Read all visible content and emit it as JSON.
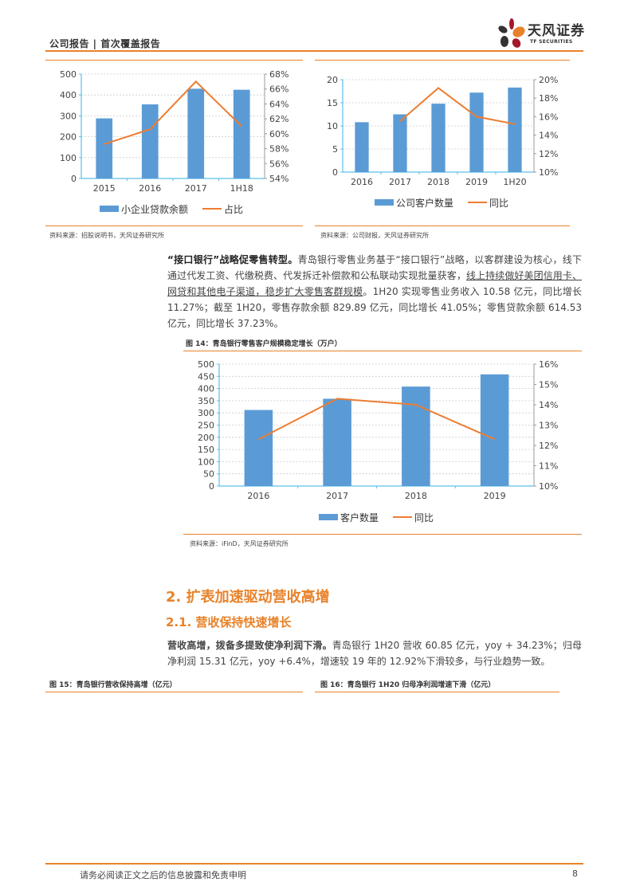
{
  "header": {
    "title": "公司报告 | 首次覆盖报告",
    "logo_cn": "天风证券",
    "logo_en": "TF SECURITIES"
  },
  "figures": {
    "fig_left": {
      "source": "资料来源：招股说明书，天风证券研究所"
    },
    "fig_right": {
      "source": "资料来源：公司财报，天风证券研究所"
    },
    "fig14": {
      "title": "图 14：青岛银行零售客户规模稳定增长（万户）",
      "source": "资料来源：iFinD，天风证券研究所"
    },
    "fig15": {
      "title": "图 15：青岛银行营收保持高增（亿元）"
    },
    "fig16": {
      "title": "图 16：青岛银行 1H20 归母净利润增速下滑（亿元）"
    }
  },
  "paragraph1": {
    "bold": "“接口银行”战略促零售转型。",
    "text1": "青岛银行零售业务基于“接口银行”战略，以客群建设为核心，线下通过代发工资、代缴税费、代发拆迁补偿款和公私联动实现批量获客，",
    "underline": "线上持续做好美团信用卡、网贷和其他电子渠道，稳步扩大零售客群规模",
    "text2": "。1H20 实现零售业务收入 10.58 亿元，同比增长 11.27%；截至 1H20，零售存款余额 829.89 亿元，同比增长 41.05%；零售贷款余额 614.53 亿元，同比增长 37.23%。"
  },
  "section": {
    "h2": "2. 扩表加速驱动营收高增",
    "h3": "2.1. 营收保持快速增长"
  },
  "paragraph2": {
    "bold": "营收高增，拨备多提致使净利润下滑。",
    "text": "青岛银行 1H20 营收 60.85 亿元，yoy + 34.23%；归母净利润 15.31 亿元，yoy +6.4%，增速较 19 年的 12.92%下滑较多，与行业趋势一致。"
  },
  "footer": {
    "disclaimer": "请务必阅读正文之后的信息披露和免责申明",
    "page": "8"
  },
  "colors": {
    "accent": "#e8822a",
    "bar": "#5b9bd5",
    "line": "#ed7d31",
    "axis": "#5bc0eb"
  },
  "chart_data": [
    {
      "type": "bar",
      "title": "",
      "categories": [
        "2015",
        "2016",
        "2017",
        "1H18"
      ],
      "series": [
        {
          "name": "小企业贷款余额",
          "type": "bar",
          "axis": "left",
          "values": [
            288,
            355,
            430,
            425
          ]
        },
        {
          "name": "占比",
          "type": "line",
          "axis": "right",
          "values": [
            58.6,
            60.6,
            67.0,
            61.0
          ]
        }
      ],
      "y_left": {
        "ticks": [
          "0",
          "100",
          "200",
          "300",
          "400",
          "500"
        ],
        "range": [
          0,
          500
        ]
      },
      "y_right": {
        "ticks": [
          "54%",
          "56%",
          "58%",
          "60%",
          "62%",
          "64%",
          "66%",
          "68%"
        ],
        "range": [
          54,
          68
        ]
      },
      "legend": [
        "小企业贷款余额",
        "占比"
      ],
      "legend_position": "bottom",
      "grid": true
    },
    {
      "type": "bar",
      "title": "",
      "categories": [
        "2016",
        "2017",
        "2018",
        "2019",
        "1H20"
      ],
      "series": [
        {
          "name": "公司客户数量",
          "type": "bar",
          "axis": "left",
          "values": [
            10.8,
            12.5,
            14.8,
            17.2,
            18.3
          ]
        },
        {
          "name": "同比",
          "type": "line",
          "axis": "right",
          "values": [
            null,
            15.5,
            19.1,
            16.0,
            15.2
          ]
        }
      ],
      "y_left": {
        "ticks": [
          "0",
          "5",
          "10",
          "15",
          "20"
        ],
        "range": [
          0,
          20
        ]
      },
      "y_right": {
        "ticks": [
          "10%",
          "12%",
          "14%",
          "16%",
          "18%",
          "20%"
        ],
        "range": [
          10,
          20
        ]
      },
      "legend": [
        "公司客户数量",
        "同比"
      ],
      "legend_position": "bottom",
      "grid": true
    },
    {
      "type": "bar",
      "title": "图 14：青岛银行零售客户规模稳定增长（万户）",
      "categories": [
        "2016",
        "2017",
        "2018",
        "2019"
      ],
      "series": [
        {
          "name": "客户数量",
          "type": "bar",
          "axis": "left",
          "values": [
            312,
            358,
            408,
            458
          ]
        },
        {
          "name": "同比",
          "type": "line",
          "axis": "right",
          "values": [
            12.3,
            14.3,
            14.0,
            12.3
          ]
        }
      ],
      "y_left": {
        "ticks": [
          "0",
          "50",
          "100",
          "150",
          "200",
          "250",
          "300",
          "350",
          "400",
          "450",
          "500"
        ],
        "range": [
          0,
          500
        ]
      },
      "y_right": {
        "ticks": [
          "10%",
          "11%",
          "12%",
          "13%",
          "14%",
          "15%",
          "16%"
        ],
        "range": [
          10,
          16
        ]
      },
      "legend": [
        "客户数量",
        "同比"
      ],
      "legend_position": "bottom",
      "grid": true
    }
  ]
}
